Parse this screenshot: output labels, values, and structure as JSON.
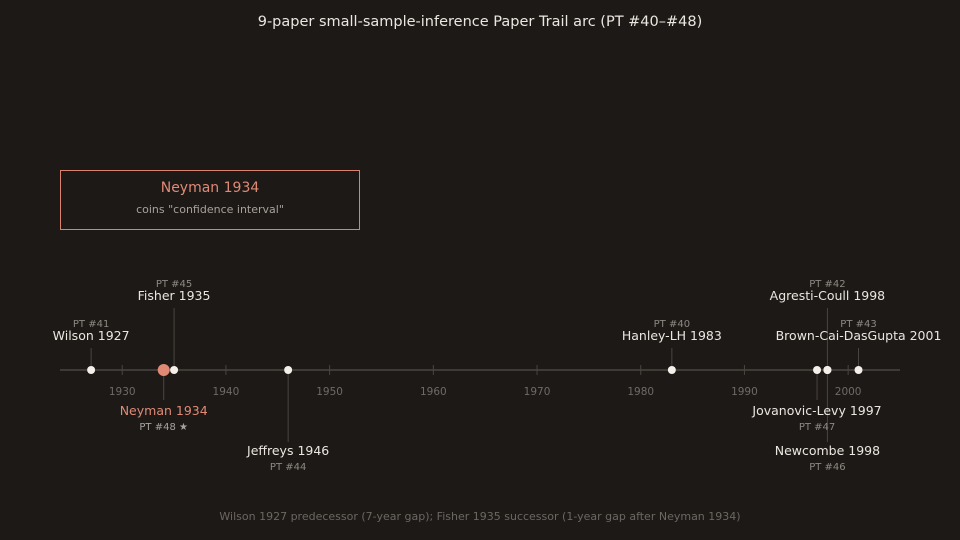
{
  "title": "9-paper small-sample-inference Paper Trail arc (PT #40–#48)",
  "callout": {
    "title": "Neyman 1934",
    "subtitle": "coins \"confidence interval\""
  },
  "footer": "Wilson 1927 predecessor (7-year gap); Fisher 1935 successor (1-year gap after Neyman 1934)",
  "colors": {
    "background": "#1c1917",
    "accent": "#e08a76",
    "dot": "#f4efe9",
    "axis": "#4a4541",
    "text": "#ece6e0",
    "muted": "#8e8882"
  },
  "chart_data": {
    "type": "timeline",
    "x_range": [
      1924,
      2005
    ],
    "ticks": [
      1930,
      1940,
      1950,
      1960,
      1970,
      1980,
      1990,
      2000
    ],
    "events": [
      {
        "name": "Wilson 1927",
        "year": 1927,
        "pt": "PT #41",
        "side": "above",
        "level": 1,
        "highlight": false
      },
      {
        "name": "Neyman 1934",
        "year": 1934,
        "pt": "PT #48 ★",
        "side": "below",
        "level": 1,
        "highlight": true
      },
      {
        "name": "Fisher 1935",
        "year": 1935,
        "pt": "PT #45",
        "side": "above",
        "level": 2,
        "highlight": false
      },
      {
        "name": "Jeffreys 1946",
        "year": 1946,
        "pt": "PT #44",
        "side": "below",
        "level": 2,
        "highlight": false
      },
      {
        "name": "Hanley-LH 1983",
        "year": 1983,
        "pt": "PT #40",
        "side": "above",
        "level": 1,
        "highlight": false
      },
      {
        "name": "Jovanovic-Levy 1997",
        "year": 1997,
        "pt": "PT #47",
        "side": "below",
        "level": 1,
        "highlight": false
      },
      {
        "name": "Agresti-Coull 1998",
        "year": 1998,
        "pt": "PT #42",
        "side": "above",
        "level": 2,
        "highlight": false
      },
      {
        "name": "Newcombe 1998",
        "year": 1998,
        "pt": "PT #46",
        "side": "below",
        "level": 2,
        "highlight": false
      },
      {
        "name": "Brown-Cai-DasGupta 2001",
        "year": 2001,
        "pt": "PT #43",
        "side": "above",
        "level": 1,
        "highlight": false
      }
    ]
  }
}
